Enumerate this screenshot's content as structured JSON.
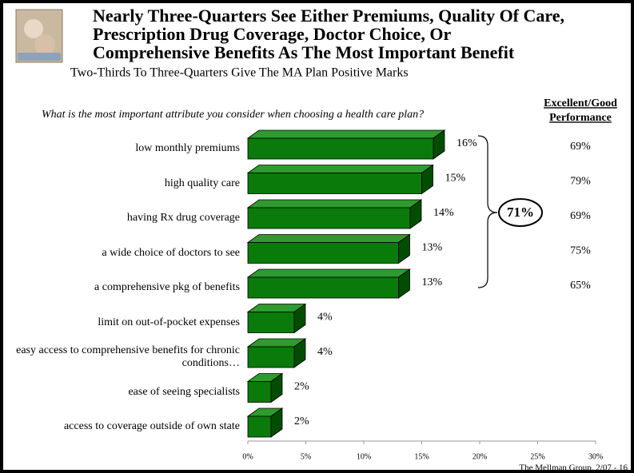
{
  "chart_data": {
    "type": "bar3d",
    "title": [
      "Nearly Three-Quarters See Either Premiums, Quality Of Care,",
      "Prescription Drug Coverage, Doctor Choice, Or",
      "Comprehensive Benefits As The Most Important Benefit"
    ],
    "subtitle": "Two-Thirds To Three-Quarters Give The MA Plan Positive Marks",
    "question": "What is the most important attribute you consider when choosing a health care plan?",
    "categories": [
      "low monthly premiums",
      "high quality care",
      "having Rx drug coverage",
      "a wide choice of doctors to see",
      "a comprehensive pkg of benefits",
      "limit on out-of-pocket expenses",
      "easy access to comprehensive benefits for chronic conditions…",
      "ease of seeing specialists",
      "access to coverage outside of own state"
    ],
    "values": [
      16,
      15,
      14,
      13,
      13,
      4,
      4,
      2,
      2
    ],
    "value_labels": [
      "16%",
      "15%",
      "14%",
      "13%",
      "13%",
      "4%",
      "4%",
      "2%",
      "2%"
    ],
    "color": "#0a7a0a",
    "xlim": [
      0,
      30
    ],
    "xticks": [
      {
        "value": 0,
        "label": "0%"
      },
      {
        "value": 5,
        "label": "5%"
      },
      {
        "value": 10,
        "label": "10%"
      },
      {
        "value": 15,
        "label": "15%"
      },
      {
        "value": 20,
        "label": "20%"
      },
      {
        "value": 25,
        "label": "25%"
      },
      {
        "value": 30,
        "label": "30%"
      }
    ],
    "bracket_label": "71%",
    "performance_header": [
      "Excellent/Good",
      "Performance"
    ],
    "performance": {
      "values": [
        69,
        79,
        69,
        75,
        65
      ],
      "value_labels": [
        "69%",
        "79%",
        "69%",
        "75%",
        "65%"
      ]
    },
    "footer": "The Mellman Group, 2/07 - 16"
  }
}
